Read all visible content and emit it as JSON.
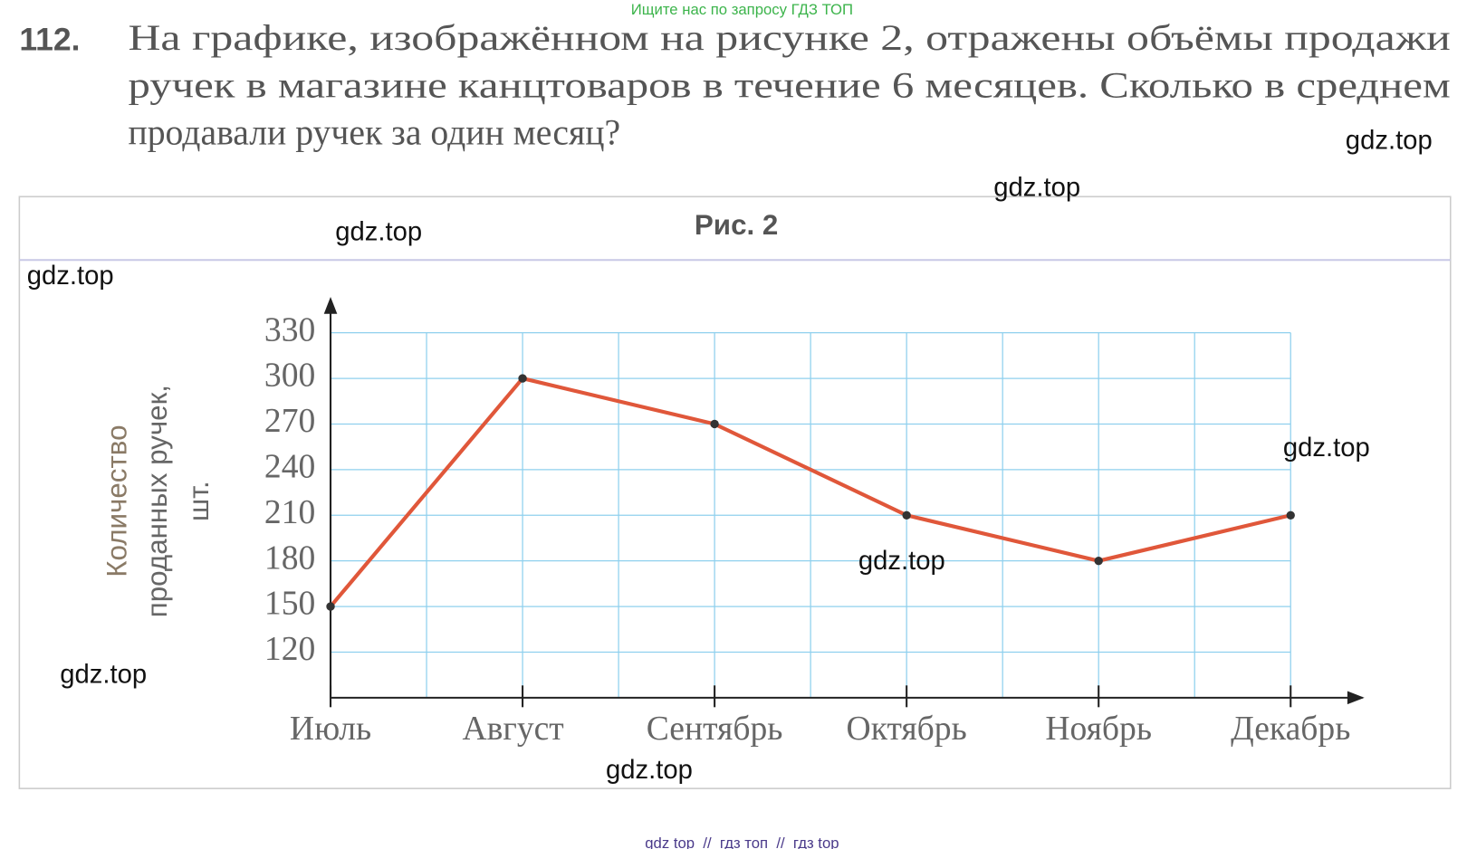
{
  "header": {
    "banner": "Ищите нас по запросу ГДЗ ТОП"
  },
  "problem": {
    "number": "112.",
    "lines": [
      "На графике, изображённом на рисунке 2, отражены объёмы продажи",
      "ручек в магазине канцтоваров в течение 6 месяцев. Сколько в среднем",
      "продавали ручек за один месяц?"
    ]
  },
  "chart_data": {
    "type": "line",
    "title": "Рис. 2",
    "y_label": [
      "Количество",
      "проданных ручек,",
      "шт."
    ],
    "categories": [
      "Июль",
      "Август",
      "Сентябрь",
      "Октябрь",
      "Ноябрь",
      "Декабрь"
    ],
    "values": [
      150,
      300,
      270,
      210,
      180,
      210
    ],
    "color": "#e0573a",
    "ylim": [
      90,
      330
    ],
    "yticks": [
      120,
      150,
      180,
      210,
      240,
      270,
      300,
      330
    ],
    "grid": true
  },
  "watermarks": [
    "gdz.top",
    "gdz.top",
    "gdz.top",
    "gdz.top",
    "gdz.top",
    "gdz.top",
    "gdz.top",
    "gdz.top"
  ],
  "footer": "gdz top  //  гдз топ  //  гдз top"
}
